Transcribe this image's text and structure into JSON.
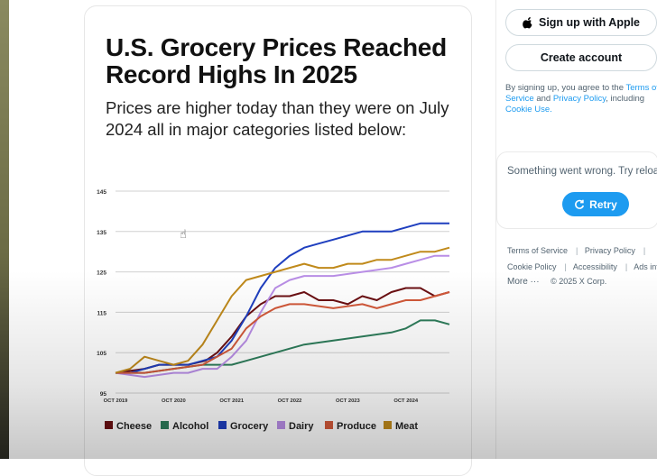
{
  "post": {
    "title": "U.S. Grocery Prices Reached Record Highs In 2025",
    "subtitle": "Prices are higher today than they were on July 2024 all in major categories listed below:"
  },
  "chart_data": {
    "type": "line",
    "title": "U.S. Grocery Prices Reached Record Highs In 2025",
    "xlabel": "",
    "ylabel": "",
    "ylim": [
      95,
      145
    ],
    "yticks": [
      95,
      105,
      115,
      125,
      135,
      145
    ],
    "x_tick_labels": [
      "OCT 2019",
      "OCT 2020",
      "OCT 2021",
      "OCT 2022",
      "OCT 2023",
      "OCT 2024"
    ],
    "x_tick_values": [
      2019.75,
      2020.75,
      2021.75,
      2022.75,
      2023.75,
      2024.75
    ],
    "xlim": [
      2019.75,
      2025.5
    ],
    "legend_position": "bottom",
    "series": [
      {
        "name": "Cheese",
        "color": "#6b0f12",
        "x": [
          2019.75,
          2020.25,
          2020.5,
          2021.0,
          2021.3,
          2021.5,
          2021.75,
          2022.0,
          2022.25,
          2022.5,
          2022.75,
          2023.0,
          2023.25,
          2023.5,
          2023.75,
          2024.0,
          2024.25,
          2024.5,
          2024.75,
          2025.0,
          2025.25,
          2025.5
        ],
        "values": [
          100,
          101,
          102,
          102,
          103,
          105,
          109,
          114,
          117,
          119,
          119,
          120,
          118,
          118,
          117,
          119,
          118,
          120,
          121,
          121,
          119,
          120
        ]
      },
      {
        "name": "Alcohol",
        "color": "#2e7d5b",
        "x": [
          2019.75,
          2020.25,
          2020.75,
          2021.25,
          2021.75,
          2022.0,
          2022.5,
          2023.0,
          2023.5,
          2024.0,
          2024.5,
          2024.75,
          2025.0,
          2025.25,
          2025.5
        ],
        "values": [
          100,
          100,
          101,
          102,
          102,
          103,
          105,
          107,
          108,
          109,
          110,
          111,
          113,
          113,
          112
        ]
      },
      {
        "name": "Grocery",
        "color": "#1f3fbf",
        "x": [
          2019.75,
          2020.0,
          2020.25,
          2020.5,
          2020.75,
          2021.0,
          2021.25,
          2021.5,
          2021.75,
          2022.0,
          2022.25,
          2022.5,
          2022.75,
          2023.0,
          2023.25,
          2023.5,
          2023.75,
          2024.0,
          2024.25,
          2024.5,
          2024.75,
          2025.0,
          2025.25,
          2025.5
        ],
        "values": [
          100,
          100,
          101,
          102,
          102,
          102,
          103,
          104,
          108,
          114,
          121,
          126,
          129,
          131,
          132,
          133,
          134,
          135,
          135,
          135,
          136,
          137,
          137,
          137
        ]
      },
      {
        "name": "Dairy",
        "color": "#b98ee6",
        "x": [
          2019.75,
          2020.25,
          2020.75,
          2021.0,
          2021.25,
          2021.5,
          2021.75,
          2022.0,
          2022.25,
          2022.5,
          2022.75,
          2023.0,
          2023.5,
          2024.0,
          2024.5,
          2024.75,
          2025.0,
          2025.25,
          2025.5
        ],
        "values": [
          100,
          99,
          100,
          100,
          101,
          101,
          104,
          108,
          115,
          121,
          123,
          124,
          124,
          125,
          126,
          127,
          128,
          129,
          129
        ]
      },
      {
        "name": "Produce",
        "color": "#d2593a",
        "x": [
          2019.75,
          2020.25,
          2020.75,
          2021.25,
          2021.75,
          2022.0,
          2022.25,
          2022.5,
          2022.75,
          2023.0,
          2023.5,
          2024.0,
          2024.25,
          2024.5,
          2024.75,
          2025.0,
          2025.25,
          2025.5
        ],
        "values": [
          100,
          100,
          101,
          102,
          106,
          111,
          114,
          116,
          117,
          117,
          116,
          117,
          116,
          117,
          118,
          118,
          119,
          120
        ]
      },
      {
        "name": "Meat",
        "color": "#c08a1b",
        "x": [
          2019.75,
          2020.0,
          2020.25,
          2020.5,
          2020.75,
          2021.0,
          2021.25,
          2021.5,
          2021.75,
          2022.0,
          2022.25,
          2022.5,
          2022.75,
          2023.0,
          2023.25,
          2023.5,
          2023.75,
          2024.0,
          2024.25,
          2024.5,
          2024.75,
          2025.0,
          2025.25,
          2025.5
        ],
        "values": [
          100,
          101,
          104,
          103,
          102,
          103,
          107,
          113,
          119,
          123,
          124,
          125,
          126,
          127,
          126,
          126,
          127,
          127,
          128,
          128,
          129,
          130,
          130,
          131
        ]
      }
    ]
  },
  "sidebar": {
    "apple_label": "Sign up with Apple",
    "create_label": "Create account",
    "legal_prefix": "By signing up, you agree to the",
    "legal_terms": "Terms of Service",
    "legal_and": "and",
    "legal_privacy": "Privacy Policy",
    "legal_suffix": ", including",
    "legal_cookie": "Cookie Use.",
    "error_text": "Something went wrong. Try reloading.",
    "retry_label": "Retry",
    "footer": {
      "terms": "Terms of Service",
      "privacy": "Privacy Policy",
      "cookie": "Cookie Policy",
      "accessibility": "Accessibility",
      "ads": "Ads info",
      "more": "More ···",
      "copyright": "© 2025 X Corp."
    }
  }
}
